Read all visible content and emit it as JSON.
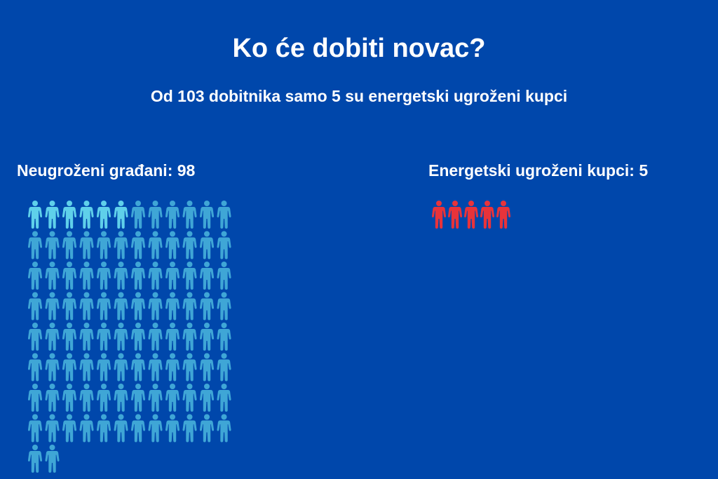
{
  "colors": {
    "background": "#0047AB",
    "text": "#FFFFFF",
    "regular": "#3FA6D6",
    "regular_highlight": "#5FD0EA",
    "vulnerable": "#E8333A"
  },
  "icon": "person-icon",
  "chart_data": {
    "type": "pictogram",
    "title": "Ko će dobiti novac?",
    "subtitle": "Od 103 dobitnika samo 5 su energetski ugroženi kupci",
    "total": 103,
    "groups": [
      {
        "label": "Neugroženi građani: 98",
        "count": 98,
        "color": "#3FA6D6",
        "highlighted": 6,
        "highlight_color": "#5FD0EA"
      },
      {
        "label": "Energetski ugroženi kupci: 5",
        "count": 5,
        "color": "#E8333A"
      }
    ]
  }
}
